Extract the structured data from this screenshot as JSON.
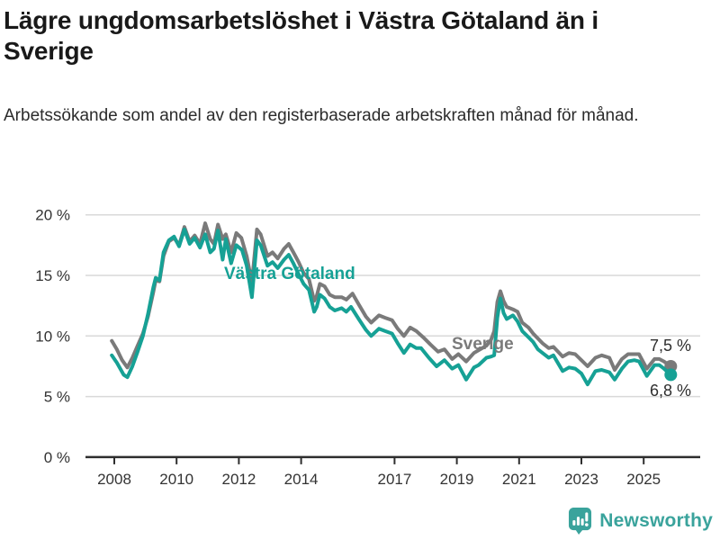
{
  "header": {
    "title": "Lägre ungdomsarbetslöshet i Västra Götaland än i Sverige",
    "subtitle": "Arbetssökande som andel av den registerbaserade arbetskraften månad för månad."
  },
  "annotations": {
    "vg_label": "Västra Götaland",
    "sweden_label": "Sverige",
    "sweden_end": "7,5 %",
    "vg_end": "6,8 %"
  },
  "footer": {
    "brand": "Newsworthy",
    "logo_icon": "bar-chart-speech-bubble-icon"
  },
  "colors": {
    "vg": "#16a195",
    "sweden": "#7a7a7a",
    "grid": "#d9d9d9",
    "axis_text": "#333333",
    "brand_teal": "#3aa39c"
  },
  "chart_data": {
    "type": "line",
    "title": "Lägre ungdomsarbetslöshet i Västra Götaland än i Sverige",
    "xlabel": "",
    "ylabel": "Arbetssökande som andel av den registerbaserade arbetskraften",
    "unit": "%",
    "grid": true,
    "legend_position": "inline-labels",
    "ylim": [
      0,
      20.5
    ],
    "xlim": [
      2007.8,
      2026.3
    ],
    "x_ticks": [
      2008,
      2010,
      2012,
      2014,
      2017,
      2019,
      2021,
      2023,
      2025
    ],
    "y_ticks": [
      0,
      5,
      10,
      15,
      20
    ],
    "y_tick_labels": [
      "0 %",
      "5 %",
      "10 %",
      "15 %",
      "20 %"
    ],
    "series": [
      {
        "name": "Sverige",
        "color": "#7a7a7a",
        "end_value": 7.5,
        "end_label": "7,5 %",
        "points": [
          [
            2007.92,
            9.6
          ],
          [
            2008.08,
            8.9
          ],
          [
            2008.25,
            8.0
          ],
          [
            2008.42,
            7.4
          ],
          [
            2008.58,
            8.2
          ],
          [
            2008.75,
            9.2
          ],
          [
            2008.92,
            10.2
          ],
          [
            2009.08,
            11.6
          ],
          [
            2009.25,
            13.6
          ],
          [
            2009.33,
            14.6
          ],
          [
            2009.45,
            14.5
          ],
          [
            2009.58,
            16.6
          ],
          [
            2009.75,
            17.8
          ],
          [
            2009.92,
            18.1
          ],
          [
            2010.08,
            17.5
          ],
          [
            2010.25,
            19.0
          ],
          [
            2010.42,
            17.8
          ],
          [
            2010.58,
            18.3
          ],
          [
            2010.75,
            17.6
          ],
          [
            2010.92,
            19.3
          ],
          [
            2011.08,
            18.0
          ],
          [
            2011.2,
            17.6
          ],
          [
            2011.33,
            19.2
          ],
          [
            2011.48,
            18.0
          ],
          [
            2011.58,
            18.4
          ],
          [
            2011.75,
            16.9
          ],
          [
            2011.92,
            18.5
          ],
          [
            2012.08,
            18.1
          ],
          [
            2012.25,
            16.6
          ],
          [
            2012.42,
            14.4
          ],
          [
            2012.58,
            18.8
          ],
          [
            2012.7,
            18.4
          ],
          [
            2012.92,
            16.6
          ],
          [
            2013.08,
            16.9
          ],
          [
            2013.25,
            16.4
          ],
          [
            2013.45,
            17.2
          ],
          [
            2013.6,
            17.6
          ],
          [
            2013.75,
            16.9
          ],
          [
            2013.92,
            16.1
          ],
          [
            2014.08,
            15.2
          ],
          [
            2014.25,
            14.7
          ],
          [
            2014.42,
            12.9
          ],
          [
            2014.5,
            13.3
          ],
          [
            2014.6,
            14.3
          ],
          [
            2014.75,
            14.1
          ],
          [
            2014.92,
            13.4
          ],
          [
            2015.08,
            13.2
          ],
          [
            2015.3,
            13.2
          ],
          [
            2015.45,
            13.0
          ],
          [
            2015.65,
            13.5
          ],
          [
            2015.85,
            12.6
          ],
          [
            2016.08,
            11.6
          ],
          [
            2016.25,
            11.1
          ],
          [
            2016.5,
            11.7
          ],
          [
            2016.7,
            11.5
          ],
          [
            2016.92,
            11.3
          ],
          [
            2017.1,
            10.6
          ],
          [
            2017.3,
            10.0
          ],
          [
            2017.5,
            10.7
          ],
          [
            2017.7,
            10.4
          ],
          [
            2017.92,
            9.9
          ],
          [
            2018.15,
            9.3
          ],
          [
            2018.4,
            8.7
          ],
          [
            2018.6,
            8.9
          ],
          [
            2018.85,
            8.1
          ],
          [
            2019.05,
            8.5
          ],
          [
            2019.3,
            7.9
          ],
          [
            2019.55,
            8.6
          ],
          [
            2019.75,
            8.9
          ],
          [
            2019.95,
            9.2
          ],
          [
            2020.1,
            9.7
          ],
          [
            2020.2,
            10.4
          ],
          [
            2020.3,
            12.8
          ],
          [
            2020.4,
            13.7
          ],
          [
            2020.5,
            12.9
          ],
          [
            2020.6,
            12.4
          ],
          [
            2020.8,
            12.2
          ],
          [
            2020.95,
            12.0
          ],
          [
            2021.1,
            11.1
          ],
          [
            2021.3,
            10.7
          ],
          [
            2021.45,
            10.2
          ],
          [
            2021.6,
            9.8
          ],
          [
            2021.75,
            9.4
          ],
          [
            2021.95,
            9.0
          ],
          [
            2022.1,
            9.1
          ],
          [
            2022.4,
            8.3
          ],
          [
            2022.6,
            8.6
          ],
          [
            2022.8,
            8.5
          ],
          [
            2023.0,
            8.0
          ],
          [
            2023.2,
            7.5
          ],
          [
            2023.45,
            8.2
          ],
          [
            2023.65,
            8.4
          ],
          [
            2023.9,
            8.2
          ],
          [
            2024.07,
            7.2
          ],
          [
            2024.3,
            8.1
          ],
          [
            2024.5,
            8.5
          ],
          [
            2024.7,
            8.5
          ],
          [
            2024.85,
            8.5
          ],
          [
            2025.1,
            7.3
          ],
          [
            2025.35,
            8.1
          ],
          [
            2025.5,
            8.1
          ],
          [
            2025.65,
            7.9
          ],
          [
            2025.87,
            7.5
          ]
        ]
      },
      {
        "name": "Västra Götaland",
        "color": "#16a195",
        "end_value": 6.8,
        "end_label": "6,8 %",
        "points": [
          [
            2007.92,
            8.4
          ],
          [
            2008.08,
            7.8
          ],
          [
            2008.3,
            6.8
          ],
          [
            2008.42,
            6.6
          ],
          [
            2008.58,
            7.5
          ],
          [
            2008.75,
            8.7
          ],
          [
            2008.92,
            10.0
          ],
          [
            2009.08,
            11.8
          ],
          [
            2009.25,
            14.0
          ],
          [
            2009.33,
            14.8
          ],
          [
            2009.45,
            14.6
          ],
          [
            2009.58,
            16.9
          ],
          [
            2009.75,
            17.9
          ],
          [
            2009.92,
            18.2
          ],
          [
            2010.08,
            17.4
          ],
          [
            2010.25,
            18.8
          ],
          [
            2010.42,
            17.6
          ],
          [
            2010.58,
            18.1
          ],
          [
            2010.75,
            17.3
          ],
          [
            2010.92,
            18.4
          ],
          [
            2011.08,
            16.9
          ],
          [
            2011.2,
            17.2
          ],
          [
            2011.33,
            18.7
          ],
          [
            2011.48,
            16.3
          ],
          [
            2011.58,
            18.0
          ],
          [
            2011.75,
            16.0
          ],
          [
            2011.92,
            17.5
          ],
          [
            2012.1,
            17.1
          ],
          [
            2012.25,
            15.8
          ],
          [
            2012.42,
            13.2
          ],
          [
            2012.58,
            17.9
          ],
          [
            2012.7,
            17.5
          ],
          [
            2012.92,
            15.8
          ],
          [
            2013.08,
            16.1
          ],
          [
            2013.25,
            15.6
          ],
          [
            2013.45,
            16.3
          ],
          [
            2013.6,
            16.7
          ],
          [
            2013.75,
            16.0
          ],
          [
            2013.92,
            15.1
          ],
          [
            2014.08,
            14.3
          ],
          [
            2014.25,
            13.8
          ],
          [
            2014.42,
            12.0
          ],
          [
            2014.5,
            12.4
          ],
          [
            2014.6,
            13.4
          ],
          [
            2014.75,
            13.1
          ],
          [
            2014.92,
            12.4
          ],
          [
            2015.08,
            12.1
          ],
          [
            2015.3,
            12.3
          ],
          [
            2015.45,
            12.0
          ],
          [
            2015.6,
            12.4
          ],
          [
            2015.85,
            11.4
          ],
          [
            2016.08,
            10.5
          ],
          [
            2016.25,
            10.0
          ],
          [
            2016.5,
            10.6
          ],
          [
            2016.7,
            10.4
          ],
          [
            2016.92,
            10.2
          ],
          [
            2017.1,
            9.4
          ],
          [
            2017.3,
            8.6
          ],
          [
            2017.5,
            9.3
          ],
          [
            2017.7,
            9.0
          ],
          [
            2017.85,
            9.0
          ],
          [
            2018.1,
            8.2
          ],
          [
            2018.35,
            7.5
          ],
          [
            2018.6,
            8.0
          ],
          [
            2018.85,
            7.3
          ],
          [
            2019.05,
            7.6
          ],
          [
            2019.3,
            6.4
          ],
          [
            2019.55,
            7.4
          ],
          [
            2019.7,
            7.6
          ],
          [
            2019.95,
            8.2
          ],
          [
            2020.1,
            8.3
          ],
          [
            2020.2,
            8.4
          ],
          [
            2020.3,
            11.5
          ],
          [
            2020.4,
            13.1
          ],
          [
            2020.5,
            11.9
          ],
          [
            2020.6,
            11.4
          ],
          [
            2020.8,
            11.7
          ],
          [
            2020.95,
            11.2
          ],
          [
            2021.1,
            10.4
          ],
          [
            2021.3,
            9.9
          ],
          [
            2021.45,
            9.5
          ],
          [
            2021.6,
            8.9
          ],
          [
            2021.75,
            8.6
          ],
          [
            2021.95,
            8.2
          ],
          [
            2022.1,
            8.4
          ],
          [
            2022.4,
            7.1
          ],
          [
            2022.6,
            7.4
          ],
          [
            2022.8,
            7.3
          ],
          [
            2023.0,
            6.9
          ],
          [
            2023.2,
            6.0
          ],
          [
            2023.45,
            7.1
          ],
          [
            2023.65,
            7.2
          ],
          [
            2023.9,
            7.0
          ],
          [
            2024.07,
            6.4
          ],
          [
            2024.3,
            7.3
          ],
          [
            2024.5,
            7.9
          ],
          [
            2024.7,
            8.0
          ],
          [
            2024.85,
            7.9
          ],
          [
            2025.1,
            6.7
          ],
          [
            2025.35,
            7.6
          ],
          [
            2025.5,
            7.6
          ],
          [
            2025.65,
            7.3
          ],
          [
            2025.87,
            6.8
          ]
        ]
      }
    ]
  }
}
